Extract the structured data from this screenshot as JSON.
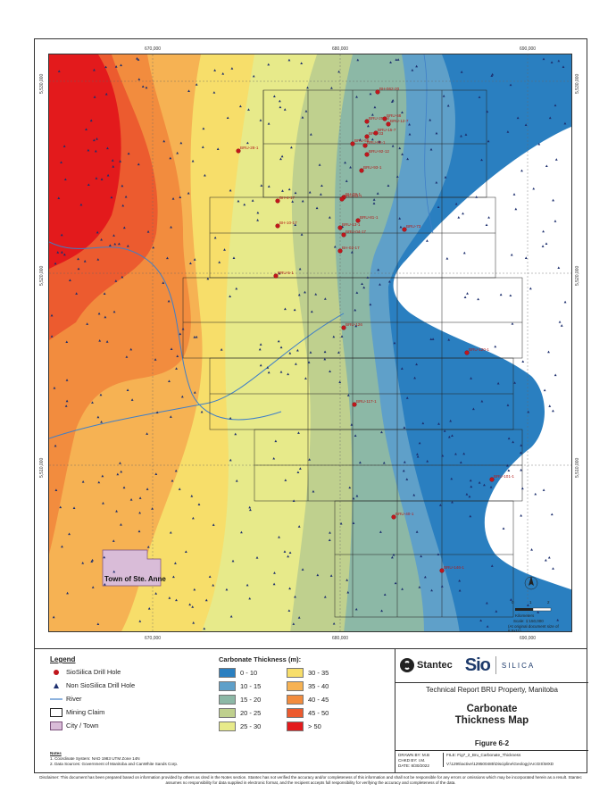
{
  "map": {
    "x_ticks_top": [
      "670,000",
      "680,000",
      "690,000"
    ],
    "x_ticks_bottom": [
      "670,000",
      "680,000",
      "690,000"
    ],
    "y_ticks_left": [
      "5,530,000",
      "5,520,000",
      "5,510,000"
    ],
    "y_ticks_right": [
      "5,530,000",
      "5,520,000",
      "5,510,000"
    ],
    "drill_holes": [
      "BH-062-20",
      "BRU-25-14",
      "BRU-68",
      "BRU-12-7",
      "BRU-15-7",
      "BRU-33",
      "BRU-58",
      "BRU-92-1",
      "BRU-92-12",
      "BRU-28-1",
      "BRU-93-1",
      "BH-09-1",
      "BRU-83-1",
      "BH-4-17",
      "BH-10-17",
      "BRU-13-1",
      "BRU-81-1",
      "BRU-04-17",
      "BRU-73",
      "BH-02-17",
      "BRU-5-1",
      "BRU-126",
      "BRU-120-1",
      "BRU-117-1",
      "BRU-101-1",
      "BRU-40-1",
      "BRU-146-1"
    ],
    "town_label": "Town of Ste. Anne",
    "scale_units": "Kilometers",
    "scale_ticks": [
      "0",
      "1",
      "2"
    ],
    "scale_note": "Scale: 1:150,000",
    "scale_note2": "(At original document size of 8.5x11)"
  },
  "legend": {
    "title": "Legend",
    "items": [
      "SioSilica Drill Hole",
      "Non SioSilica Drill Hole",
      "River",
      "Mining Claim",
      "City / Town"
    ]
  },
  "thickness": {
    "title": "Carbonate Thickness (m):",
    "classes": [
      {
        "label": "0 - 10",
        "color": "#2a7fc0"
      },
      {
        "label": "30 - 35",
        "color": "#f7de6a"
      },
      {
        "label": "10 - 15",
        "color": "#5fa0c9"
      },
      {
        "label": "35 - 40",
        "color": "#f6b253"
      },
      {
        "label": "15 - 20",
        "color": "#8cb8a6"
      },
      {
        "label": "40 - 45",
        "color": "#f28c3e"
      },
      {
        "label": "20 - 25",
        "color": "#bfd08e"
      },
      {
        "label": "45 - 50",
        "color": "#ec5b2f"
      },
      {
        "label": "25 - 30",
        "color": "#e7ea8a"
      },
      {
        "label": "> 50",
        "color": "#e31a1c"
      }
    ]
  },
  "notes": {
    "title": "Notes",
    "line1": "1. Coordinate System: NAD 1983 UTM Zone 14N",
    "line2": "2. Data Sources: Government of Manitoba and CanWhite Sands Corp."
  },
  "titleblock": {
    "stantec": "Stantec",
    "sio": "Sio",
    "silica": "SILICA",
    "project": "Technical Report BRU Property, Manitoba",
    "title_line1": "Carbonate",
    "title_line2": "Thickness Map",
    "figure": "Figure 6-2",
    "drawn": "DRAWN BY: M.B",
    "checked": "CHKD BY: I.M.",
    "date": "DATE: 8/30/2022",
    "file": "FILE: Fig7_2_Bru_Carbonate_Thickness",
    "path": "V:\\1295\\active\\129500485\\Discipline\\Geology\\ArcGIS\\MXD"
  },
  "disclaimer": "Disclaimer: This document has been prepared based on information provided by others as cited in the Notes section. Stantec has not verified the accuracy and/or completeness of this information and shall not be responsible for any errors or omissions which may be incorporated herein as a result. Stantec assumes no responsibility for data supplied in electronic format, and the recipient accepts full responsibility for verifying the accuracy and completeness of the data."
}
